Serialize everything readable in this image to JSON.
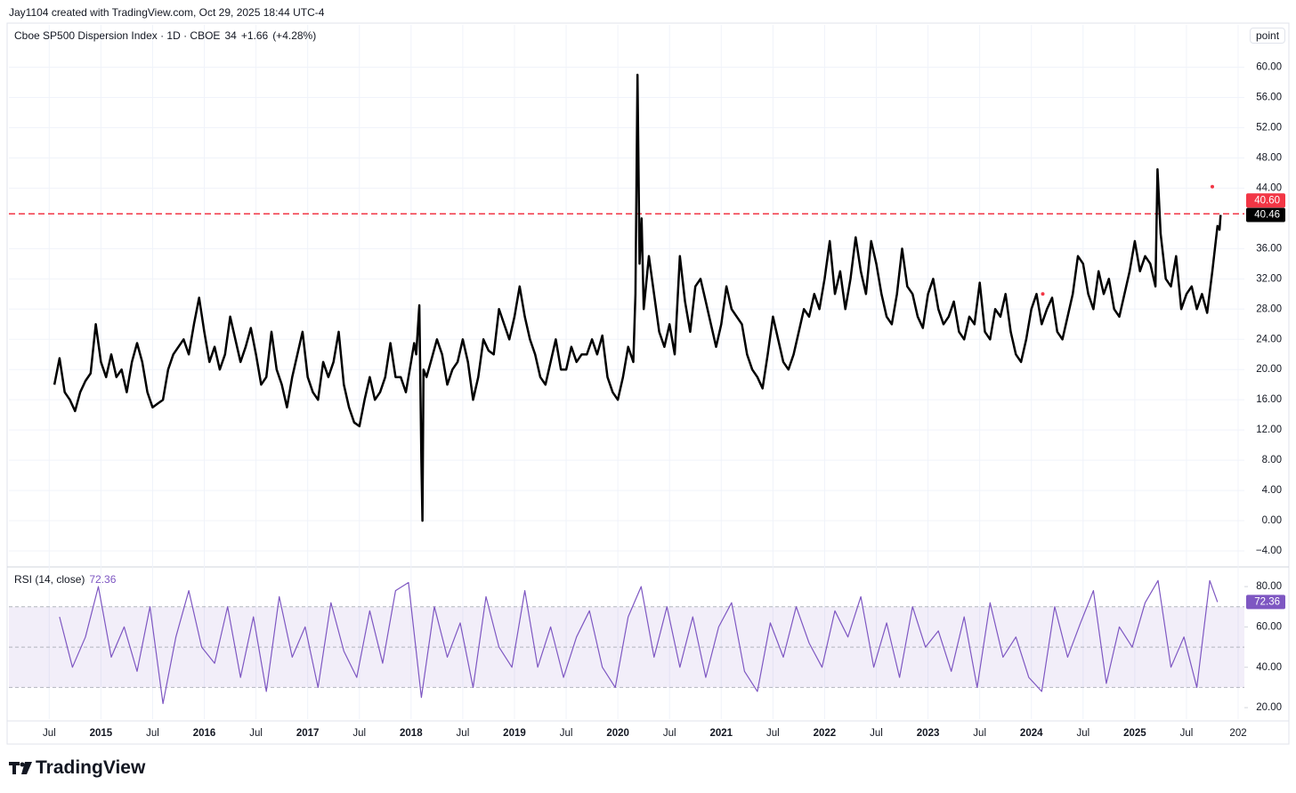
{
  "header": {
    "credit": "Jay1104 created with TradingView.com, Oct 29, 2025 18:44 UTC-4",
    "symbol": "Cboe SP500 Dispersion Index · 1D · CBOE",
    "change": "+1.66",
    "change_pct": "(+4.28%)",
    "scale_mode": "point",
    "logo": "TradingView"
  },
  "chart_data": [
    {
      "type": "line",
      "title": "Cboe SP500 Dispersion Index",
      "xlim": [
        2014.11,
        2026.06
      ],
      "ylim": [
        -6,
        65.6
      ],
      "grid": true,
      "xticks": [
        {
          "value": 2014.5,
          "label": "Jul"
        },
        2015,
        {
          "value": 2015.5,
          "label": "Jul"
        },
        2016,
        {
          "value": 2016.5,
          "label": "Jul"
        },
        2017,
        {
          "value": 2017.5,
          "label": "Jul"
        },
        2018,
        {
          "value": 2018.5,
          "label": "Jul"
        },
        2019,
        {
          "value": 2019.5,
          "label": "Jul"
        },
        2020,
        {
          "value": 2020.5,
          "label": "Jul"
        },
        2021,
        {
          "value": 2021.5,
          "label": "Jul"
        },
        2022,
        {
          "value": 2022.5,
          "label": "Jul"
        },
        2023,
        {
          "value": 2023.5,
          "label": "Jul"
        },
        2024,
        {
          "value": 2024.5,
          "label": "Jul"
        },
        2025,
        {
          "value": 2025.5,
          "label": "Jul"
        },
        {
          "value": 2026,
          "label": "202"
        }
      ],
      "yticks": [
        {
          "value": 60,
          "label": "60.00"
        },
        {
          "value": 56,
          "label": "56.00"
        },
        {
          "value": 52,
          "label": "52.00"
        },
        {
          "value": 48,
          "label": "48.00"
        },
        {
          "value": 44,
          "label": "44.00"
        },
        {
          "value": 36,
          "label": "36.00"
        },
        {
          "value": 32,
          "label": "32.00"
        },
        {
          "value": 28,
          "label": "28.00"
        },
        {
          "value": 24,
          "label": "24.00"
        },
        {
          "value": 20,
          "label": "20.00"
        },
        {
          "value": 16,
          "label": "16.00"
        },
        {
          "value": 12,
          "label": "12.00"
        },
        {
          "value": 8,
          "label": "8.00"
        },
        {
          "value": 4,
          "label": "4.00"
        },
        {
          "value": 0,
          "label": "0.00"
        },
        {
          "value": -4,
          "label": "−4.00"
        }
      ],
      "x": [
        2014.55,
        2014.6,
        2014.65,
        2014.7,
        2014.75,
        2014.8,
        2014.85,
        2014.9,
        2014.95,
        2015,
        2015.05,
        2015.1,
        2015.15,
        2015.2,
        2015.25,
        2015.3,
        2015.35,
        2015.4,
        2015.45,
        2015.5,
        2015.55,
        2015.6,
        2015.65,
        2015.7,
        2015.75,
        2015.8,
        2015.85,
        2015.9,
        2015.95,
        2016,
        2016.05,
        2016.1,
        2016.15,
        2016.2,
        2016.25,
        2016.3,
        2016.35,
        2016.4,
        2016.45,
        2016.5,
        2016.55,
        2016.6,
        2016.65,
        2016.7,
        2016.75,
        2016.8,
        2016.85,
        2016.9,
        2016.95,
        2017,
        2017.05,
        2017.1,
        2017.15,
        2017.2,
        2017.25,
        2017.3,
        2017.35,
        2017.4,
        2017.45,
        2017.5,
        2017.55,
        2017.6,
        2017.65,
        2017.7,
        2017.75,
        2017.8,
        2017.85,
        2017.9,
        2017.95,
        2018,
        2018.03,
        2018.05,
        2018.08,
        2018.1,
        2018.11,
        2018.12,
        2018.15,
        2018.2,
        2018.25,
        2018.3,
        2018.35,
        2018.4,
        2018.45,
        2018.5,
        2018.55,
        2018.6,
        2018.65,
        2018.7,
        2018.75,
        2018.8,
        2018.85,
        2018.9,
        2018.95,
        2019,
        2019.05,
        2019.1,
        2019.15,
        2019.2,
        2019.25,
        2019.3,
        2019.35,
        2019.4,
        2019.45,
        2019.5,
        2019.55,
        2019.6,
        2019.65,
        2019.7,
        2019.75,
        2019.8,
        2019.85,
        2019.9,
        2019.95,
        2020,
        2020.05,
        2020.1,
        2020.15,
        2020.17,
        2020.19,
        2020.21,
        2020.23,
        2020.25,
        2020.3,
        2020.35,
        2020.4,
        2020.45,
        2020.5,
        2020.55,
        2020.6,
        2020.65,
        2020.7,
        2020.75,
        2020.8,
        2020.85,
        2020.9,
        2020.95,
        2021,
        2021.05,
        2021.1,
        2021.15,
        2021.2,
        2021.25,
        2021.3,
        2021.35,
        2021.4,
        2021.45,
        2021.5,
        2021.55,
        2021.6,
        2021.65,
        2021.7,
        2021.75,
        2021.8,
        2021.85,
        2021.9,
        2021.95,
        2022,
        2022.05,
        2022.1,
        2022.15,
        2022.2,
        2022.25,
        2022.3,
        2022.35,
        2022.4,
        2022.45,
        2022.5,
        2022.55,
        2022.6,
        2022.65,
        2022.7,
        2022.75,
        2022.8,
        2022.85,
        2022.9,
        2022.95,
        2023,
        2023.05,
        2023.1,
        2023.15,
        2023.2,
        2023.25,
        2023.3,
        2023.35,
        2023.4,
        2023.45,
        2023.5,
        2023.55,
        2023.6,
        2023.65,
        2023.7,
        2023.75,
        2023.8,
        2023.85,
        2023.9,
        2023.95,
        2024,
        2024.05,
        2024.1,
        2024.15,
        2024.2,
        2024.25,
        2024.3,
        2024.35,
        2024.4,
        2024.45,
        2024.5,
        2024.55,
        2024.6,
        2024.65,
        2024.7,
        2024.75,
        2024.8,
        2024.85,
        2024.9,
        2024.95,
        2025,
        2025.05,
        2025.1,
        2025.15,
        2025.2,
        2025.22,
        2025.25,
        2025.3,
        2025.35,
        2025.4,
        2025.45,
        2025.5,
        2025.55,
        2025.6,
        2025.65,
        2025.7,
        2025.75,
        2025.8,
        2025.82,
        2025.83
      ],
      "series": [
        {
          "name": "Cboe SP500 Dispersion Index",
          "color": "#000000",
          "values": [
            18,
            21.5,
            17,
            16,
            14.5,
            17,
            18.5,
            19.5,
            26,
            21,
            19,
            22,
            19,
            20,
            17,
            21,
            23.5,
            21,
            17,
            15,
            15.5,
            16,
            20,
            22,
            23,
            24,
            22,
            26,
            29.5,
            25,
            21,
            23,
            20,
            22,
            27,
            24,
            21,
            23,
            25.5,
            22,
            18,
            19,
            25,
            20,
            18,
            15,
            19,
            22,
            25,
            19,
            17,
            16,
            21,
            19,
            21,
            25,
            18,
            15,
            13,
            12.5,
            16,
            19,
            16,
            17,
            19,
            23.5,
            19,
            19,
            17,
            21,
            23.5,
            22,
            28.5,
            8,
            0,
            20,
            19,
            21.5,
            24,
            22,
            18,
            20,
            21,
            24,
            21,
            16,
            19,
            24,
            22.5,
            22,
            28,
            26,
            24,
            27,
            31,
            27,
            24,
            22,
            19,
            18,
            21,
            24,
            20,
            20,
            23,
            21,
            22,
            22,
            24,
            22,
            24.5,
            19,
            17,
            16,
            19,
            23,
            21,
            30,
            59,
            34,
            40,
            28,
            35,
            30,
            25,
            23,
            26,
            22,
            35,
            29,
            25,
            31,
            32,
            29,
            26,
            23,
            26,
            31,
            28,
            27,
            26,
            22,
            20,
            19,
            17.5,
            22,
            27,
            24,
            21,
            20,
            22,
            25,
            28,
            27,
            30,
            28,
            32,
            37,
            30,
            33,
            28,
            32,
            37.5,
            33,
            30,
            37,
            34,
            30,
            27,
            26,
            30,
            36,
            31,
            30,
            27,
            25.5,
            30,
            32,
            28,
            26,
            27,
            29,
            25,
            24,
            27,
            26,
            31.5,
            25,
            24,
            28,
            27,
            30,
            25,
            22,
            21,
            24,
            28,
            30,
            26,
            28,
            29.5,
            25,
            24,
            27,
            30,
            35,
            34,
            30,
            28,
            33,
            30,
            32,
            28,
            27,
            30,
            33,
            37,
            33,
            35,
            34,
            31,
            46.5,
            38,
            32,
            31,
            35,
            28,
            30,
            31,
            28,
            30,
            27.5,
            33,
            39,
            38.5,
            40.46
          ]
        }
      ],
      "hline": {
        "value": 40.6,
        "label": "40.60",
        "color": "#f23645"
      },
      "markers": {
        "color": "#f23645",
        "x": [
          2024.11,
          2025.75
        ],
        "y": [
          30,
          44.2
        ]
      }
    },
    {
      "type": "line",
      "title": "RSI (14, close)",
      "xlim": [
        2014.11,
        2026.06
      ],
      "ylim": [
        14.3,
        89.3
      ],
      "grid": false,
      "yticks": [
        {
          "value": 80,
          "label": "80.00"
        },
        {
          "value": 60,
          "label": "60.00"
        },
        {
          "value": 40,
          "label": "40.00"
        },
        {
          "value": 20,
          "label": "20.00"
        }
      ],
      "band": [
        30,
        70
      ],
      "midline": 50,
      "x": [
        2014.6,
        2014.725,
        2014.85,
        2014.975,
        2015.1,
        2015.225,
        2015.35,
        2015.475,
        2015.6,
        2015.725,
        2015.85,
        2015.975,
        2016.1,
        2016.225,
        2016.35,
        2016.475,
        2016.6,
        2016.725,
        2016.85,
        2016.975,
        2017.1,
        2017.225,
        2017.35,
        2017.475,
        2017.6,
        2017.725,
        2017.85,
        2017.975,
        2018.1,
        2018.225,
        2018.35,
        2018.475,
        2018.6,
        2018.725,
        2018.85,
        2018.975,
        2019.1,
        2019.225,
        2019.35,
        2019.475,
        2019.6,
        2019.725,
        2019.85,
        2019.975,
        2020.1,
        2020.225,
        2020.35,
        2020.475,
        2020.6,
        2020.725,
        2020.85,
        2020.975,
        2021.1,
        2021.225,
        2021.35,
        2021.475,
        2021.6,
        2021.725,
        2021.85,
        2021.975,
        2022.1,
        2022.225,
        2022.35,
        2022.475,
        2022.6,
        2022.725,
        2022.85,
        2022.975,
        2023.1,
        2023.225,
        2023.35,
        2023.475,
        2023.6,
        2023.725,
        2023.85,
        2023.975,
        2024.1,
        2024.225,
        2024.35,
        2024.475,
        2024.6,
        2024.725,
        2024.85,
        2024.975,
        2025.1,
        2025.225,
        2025.35,
        2025.475,
        2025.6,
        2025.725,
        2025.8
      ],
      "series": [
        {
          "name": "RSI (14, close)",
          "color": "#7e57c2",
          "values": [
            65,
            40,
            55,
            80,
            45,
            60,
            38,
            70,
            22,
            55,
            78,
            50,
            42,
            70,
            35,
            65,
            28,
            75,
            45,
            60,
            30,
            72,
            48,
            35,
            68,
            42,
            78,
            82,
            25,
            70,
            45,
            62,
            30,
            75,
            50,
            40,
            78,
            40,
            60,
            35,
            55,
            68,
            40,
            30,
            65,
            80,
            45,
            70,
            40,
            65,
            35,
            60,
            72,
            38,
            28,
            62,
            45,
            70,
            52,
            40,
            68,
            55,
            75,
            40,
            62,
            35,
            70,
            50,
            58,
            38,
            65,
            30,
            72,
            45,
            55,
            35,
            28,
            70,
            45,
            62,
            78,
            32,
            60,
            50,
            72,
            83,
            40,
            55,
            30,
            83,
            72.36
          ]
        }
      ]
    }
  ]
}
